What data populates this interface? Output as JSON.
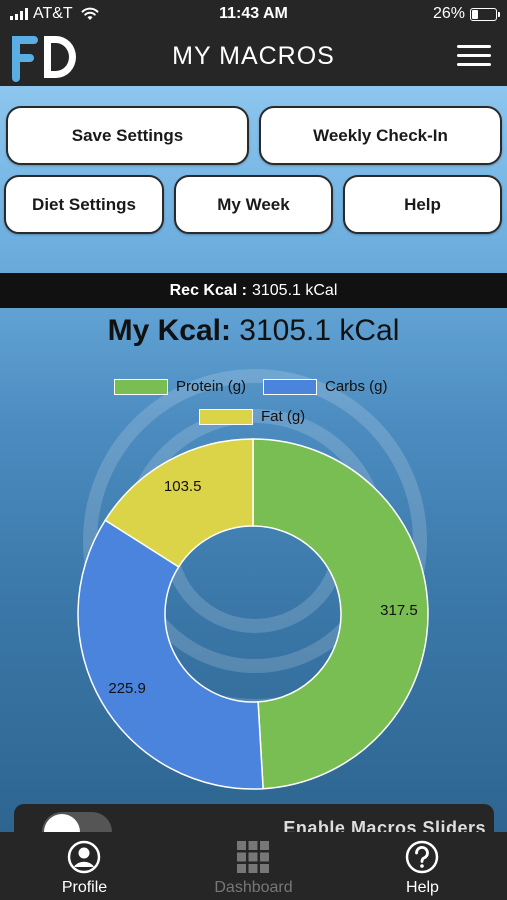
{
  "status_bar": {
    "carrier": "AT&T",
    "time": "11:43 AM",
    "battery": "26%",
    "battery_level": 0.26
  },
  "header": {
    "logo_text": "FD",
    "title": "MY MACROS",
    "menu_icon": "hamburger-menu-icon"
  },
  "buttons": {
    "save_settings": "Save Settings",
    "weekly_checkin": "Weekly Check-In",
    "diet_settings": "Diet Settings",
    "my_week": "My Week",
    "help": "Help"
  },
  "rec_kcal": {
    "label": "Rec Kcal :",
    "value": "3105.1 kCal"
  },
  "my_kcal": {
    "label": "My Kcal:",
    "value": "3105.1 kCal"
  },
  "chart_data": {
    "type": "pie",
    "donut": true,
    "title": "",
    "series": [
      {
        "name": "Protein (g)",
        "value": 317.5,
        "color": "#78be52"
      },
      {
        "name": "Carbs (g)",
        "value": 225.9,
        "color": "#4a84dc"
      },
      {
        "name": "Fat (g)",
        "value": 103.5,
        "color": "#dcd448"
      }
    ],
    "legend_position": "top",
    "slice_border_color": "#ffffff"
  },
  "slider_panel": {
    "label": "Enable Macros Sliders",
    "toggle_on": false
  },
  "tab_bar": {
    "tabs": [
      {
        "label": "Profile",
        "icon": "profile-icon",
        "active": true
      },
      {
        "label": "Dashboard",
        "icon": "dashboard-grid-icon",
        "active": false
      },
      {
        "label": "Help",
        "icon": "help-icon",
        "active": true
      }
    ]
  },
  "colors": {
    "bar": "#262626",
    "accent_blue": "#4a84dc"
  }
}
